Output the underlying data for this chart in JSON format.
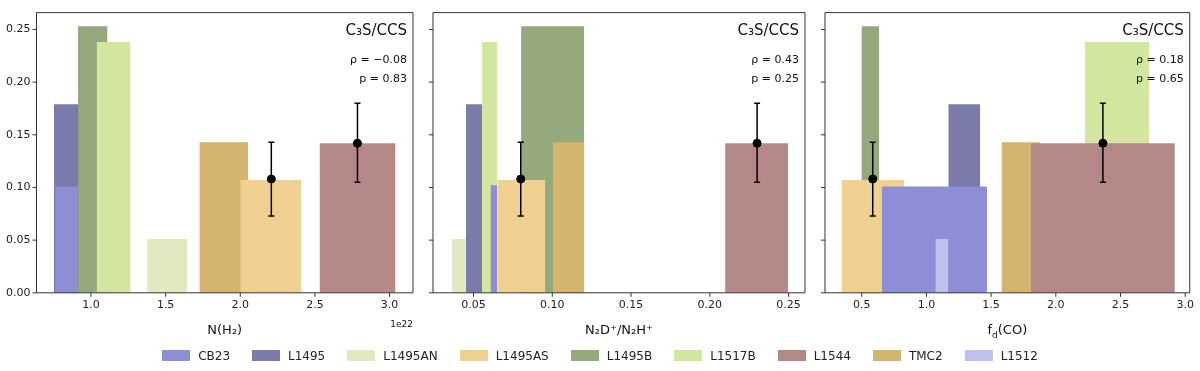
{
  "chart_data": [
    {
      "type": "histogram",
      "xlabel": "N(H₂)",
      "annotations": [
        "C₃S/CCS",
        "ρ = −0.08",
        "p = 0.83",
        "1e22"
      ],
      "legend": "bottom",
      "xlim": [
        0.635,
        3.157
      ],
      "xticks": [
        {
          "value": 1.0,
          "label": "1.0"
        },
        {
          "value": 1.5,
          "label": "1.5"
        },
        {
          "value": 2.0,
          "label": "2.0"
        },
        {
          "value": 2.5,
          "label": "2.5"
        },
        {
          "value": 3.0,
          "label": "3.0"
        }
      ],
      "ylim": [
        0,
        0.266
      ],
      "yticks": [
        {
          "value": 0,
          "label": "0.00"
        },
        {
          "value": 0.05,
          "label": "0.05"
        },
        {
          "value": 0.1,
          "label": "0.10"
        },
        {
          "value": 0.15,
          "label": "0.15"
        },
        {
          "value": 0.2,
          "label": "0.20"
        },
        {
          "value": 0.25,
          "label": "0.25"
        }
      ],
      "series": [
        {
          "name": "CB23",
          "color": "#8c8fd6",
          "bins": [
            0.76,
            0.914
          ],
          "values": [
            0.101
          ]
        },
        {
          "name": "L1495",
          "color": "#7a7ba8",
          "bins": [
            0.752,
            0.916
          ],
          "values": [
            0.179
          ]
        },
        {
          "name": "L1495AN",
          "color": "#e2e9c0",
          "bins": [
            1.376,
            1.646
          ],
          "values": [
            0.051
          ]
        },
        {
          "name": "L1495AS",
          "color": "#f0d090",
          "bins": [
            2.0,
            2.41
          ],
          "values": [
            0.107
          ]
        },
        {
          "name": "L1495B",
          "color": "#94a97c",
          "bins": [
            0.912,
            1.111
          ],
          "values": [
            0.253
          ]
        },
        {
          "name": "L1517B",
          "color": "#d2e6a0",
          "bins": [
            1.038,
            1.265
          ],
          "values": [
            0.238
          ]
        },
        {
          "name": "L1544",
          "color": "#b58888",
          "bins": [
            2.531,
            3.04
          ],
          "values": [
            0.142
          ]
        },
        {
          "name": "TMC2",
          "color": "#d4b46e",
          "bins": [
            1.726,
            2.053
          ],
          "values": [
            0.143
          ]
        },
        {
          "type": "scatter",
          "color": "#000000",
          "marker": "circle",
          "x": [
            2.208,
            2.785
          ],
          "values": [
            0.108,
            0.142
          ],
          "errors": [
            [
              0.073,
              0.143
            ],
            [
              0.105,
              0.18
            ]
          ]
        }
      ]
    },
    {
      "type": "histogram",
      "xlabel": "N₂D⁺/N₂H⁺",
      "annotations": [
        "C₃S/CCS",
        "ρ = 0.43",
        "p = 0.25"
      ],
      "legend": "bottom",
      "tick_labels": "x",
      "xlim": [
        0.0243,
        0.2604
      ],
      "xticks": [
        {
          "value": 0.05,
          "label": "0.05"
        },
        {
          "value": 0.1,
          "label": "0.10"
        },
        {
          "value": 0.15,
          "label": "0.15"
        },
        {
          "value": 0.2,
          "label": "0.20"
        },
        {
          "value": 0.25,
          "label": "0.25"
        }
      ],
      "ylim": [
        0,
        0.266
      ],
      "yticks": [
        {
          "value": 0,
          "label": null
        },
        {
          "value": 0.05,
          "label": null
        },
        {
          "value": 0.1,
          "label": null
        },
        {
          "value": 0.15,
          "label": null
        },
        {
          "value": 0.2,
          "label": null
        },
        {
          "value": 0.25,
          "label": null
        }
      ],
      "series": [
        {
          "name": "CB23",
          "color": "#8c8fd6",
          "bins": [
            0.0608,
            0.0651
          ],
          "values": [
            0.102
          ]
        },
        {
          "name": "L1495",
          "color": "#7a7ba8",
          "bins": [
            0.0452,
            0.0554
          ],
          "values": [
            0.179
          ]
        },
        {
          "name": "L1495AN",
          "color": "#e2e9c0",
          "bins": [
            0.0361,
            0.0452
          ],
          "values": [
            0.051
          ]
        },
        {
          "name": "L1495AS",
          "color": "#f0d090",
          "bins": [
            0.0651,
            0.0956
          ],
          "values": [
            0.107
          ]
        },
        {
          "name": "L1495B",
          "color": "#94a97c",
          "bins": [
            0.0802,
            0.1203
          ],
          "values": [
            0.253
          ]
        },
        {
          "name": "L1517B",
          "color": "#d2e6a0",
          "bins": [
            0.0554,
            0.0651
          ],
          "values": [
            0.238
          ]
        },
        {
          "name": "L1544",
          "color": "#b58888",
          "bins": [
            0.2097,
            0.2496
          ],
          "values": [
            0.142
          ]
        },
        {
          "name": "TMC2",
          "color": "#d4b46e",
          "bins": [
            0.1002,
            0.1203
          ],
          "values": [
            0.143
          ]
        },
        {
          "type": "scatter",
          "color": "#000000",
          "marker": "circle",
          "x": [
            0.08,
            0.23
          ],
          "values": [
            0.108,
            0.142
          ],
          "errors": [
            [
              0.073,
              0.143
            ],
            [
              0.105,
              0.18
            ]
          ]
        }
      ]
    },
    {
      "type": "histogram",
      "xlabel": "f$_{d}$(CO)",
      "annotations": [
        "C₃S/CCS",
        "ρ = 0.18",
        "p = 0.65"
      ],
      "tick_labels": "x",
      "legend": "bottom",
      "xlim": [
        0.216,
        3.035
      ],
      "xticks": [
        {
          "value": 0.5,
          "label": "0.5"
        },
        {
          "value": 1.0,
          "label": "1.0"
        },
        {
          "value": 1.5,
          "label": "1.5"
        },
        {
          "value": 2.0,
          "label": "2.0"
        },
        {
          "value": 2.5,
          "label": "2.5"
        },
        {
          "value": 3.0,
          "label": "3.0"
        }
      ],
      "ylim": [
        0,
        0.266
      ],
      "yticks": [
        {
          "value": 0,
          "label": null
        },
        {
          "value": 0.05,
          "label": null
        },
        {
          "value": 0.1,
          "label": null
        },
        {
          "value": 0.15,
          "label": null
        },
        {
          "value": 0.2,
          "label": null
        },
        {
          "value": 0.25,
          "label": null
        }
      ],
      "series": [
        {
          "name": "CB23",
          "color": "#8c8fd6",
          "bins": [
            0.655,
            1.47
          ],
          "values": [
            0.101
          ]
        },
        {
          "name": "L1495",
          "color": "#7a7ba8",
          "bins": [
            1.169,
            1.416
          ],
          "values": [
            0.179
          ]
        },
        {
          "name": "L1495AS",
          "color": "#f0d090",
          "bins": [
            0.343,
            0.827
          ],
          "values": [
            0.107
          ]
        },
        {
          "name": "L1495B",
          "color": "#94a97c",
          "bins": [
            0.4975,
            0.635
          ],
          "values": [
            0.253
          ]
        },
        {
          "name": "L1512",
          "color": "#c0c0ec",
          "bins": [
            1.069,
            1.169
          ],
          "values": [
            0.051
          ]
        },
        {
          "name": "L1517B",
          "color": "#d2e6a0",
          "bins": [
            2.224,
            2.723
          ],
          "values": [
            0.238
          ]
        },
        {
          "name": "L1544",
          "color": "#b58888",
          "bins": [
            1.807,
            2.92
          ],
          "values": [
            0.142
          ]
        },
        {
          "name": "TMC2",
          "color": "#d4b46e",
          "bins": [
            1.58,
            1.877
          ],
          "values": [
            0.143
          ]
        },
        {
          "type": "scatter",
          "color": "#000000",
          "marker": "circle",
          "x": [
            0.585,
            2.364
          ],
          "values": [
            0.108,
            0.142
          ],
          "errors": [
            [
              0.073,
              0.143
            ],
            [
              0.105,
              0.18
            ]
          ]
        }
      ]
    }
  ]
}
